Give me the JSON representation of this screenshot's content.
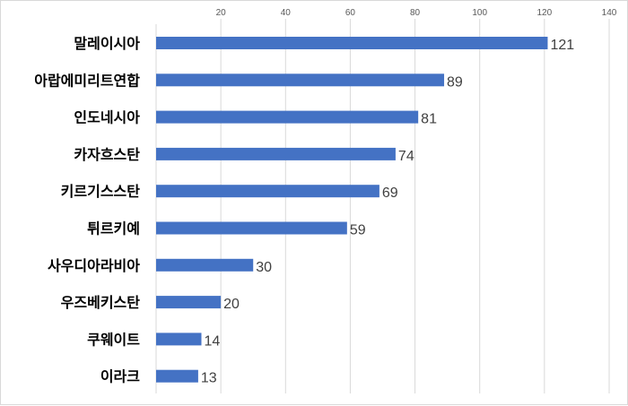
{
  "chart_data": {
    "type": "bar",
    "orientation": "horizontal",
    "categories": [
      "말레이시아",
      "아랍에미리트연합",
      "인도네시아",
      "카자흐스탄",
      "키르기스스탄",
      "튀르키예",
      "사우디아라비아",
      "우즈베키스탄",
      "쿠웨이트",
      "이라크"
    ],
    "values": [
      121,
      89,
      81,
      74,
      69,
      59,
      30,
      20,
      14,
      13
    ],
    "x_ticks": [
      "20",
      "40",
      "60",
      "80",
      "100",
      "120",
      "140"
    ],
    "xlim": [
      0,
      140
    ],
    "title": "",
    "xlabel": "",
    "ylabel": "",
    "grid": "vertical",
    "legend": "none",
    "bar_color": "#4472C4",
    "grid_color": "#d9d9d9",
    "data_labels": true
  }
}
